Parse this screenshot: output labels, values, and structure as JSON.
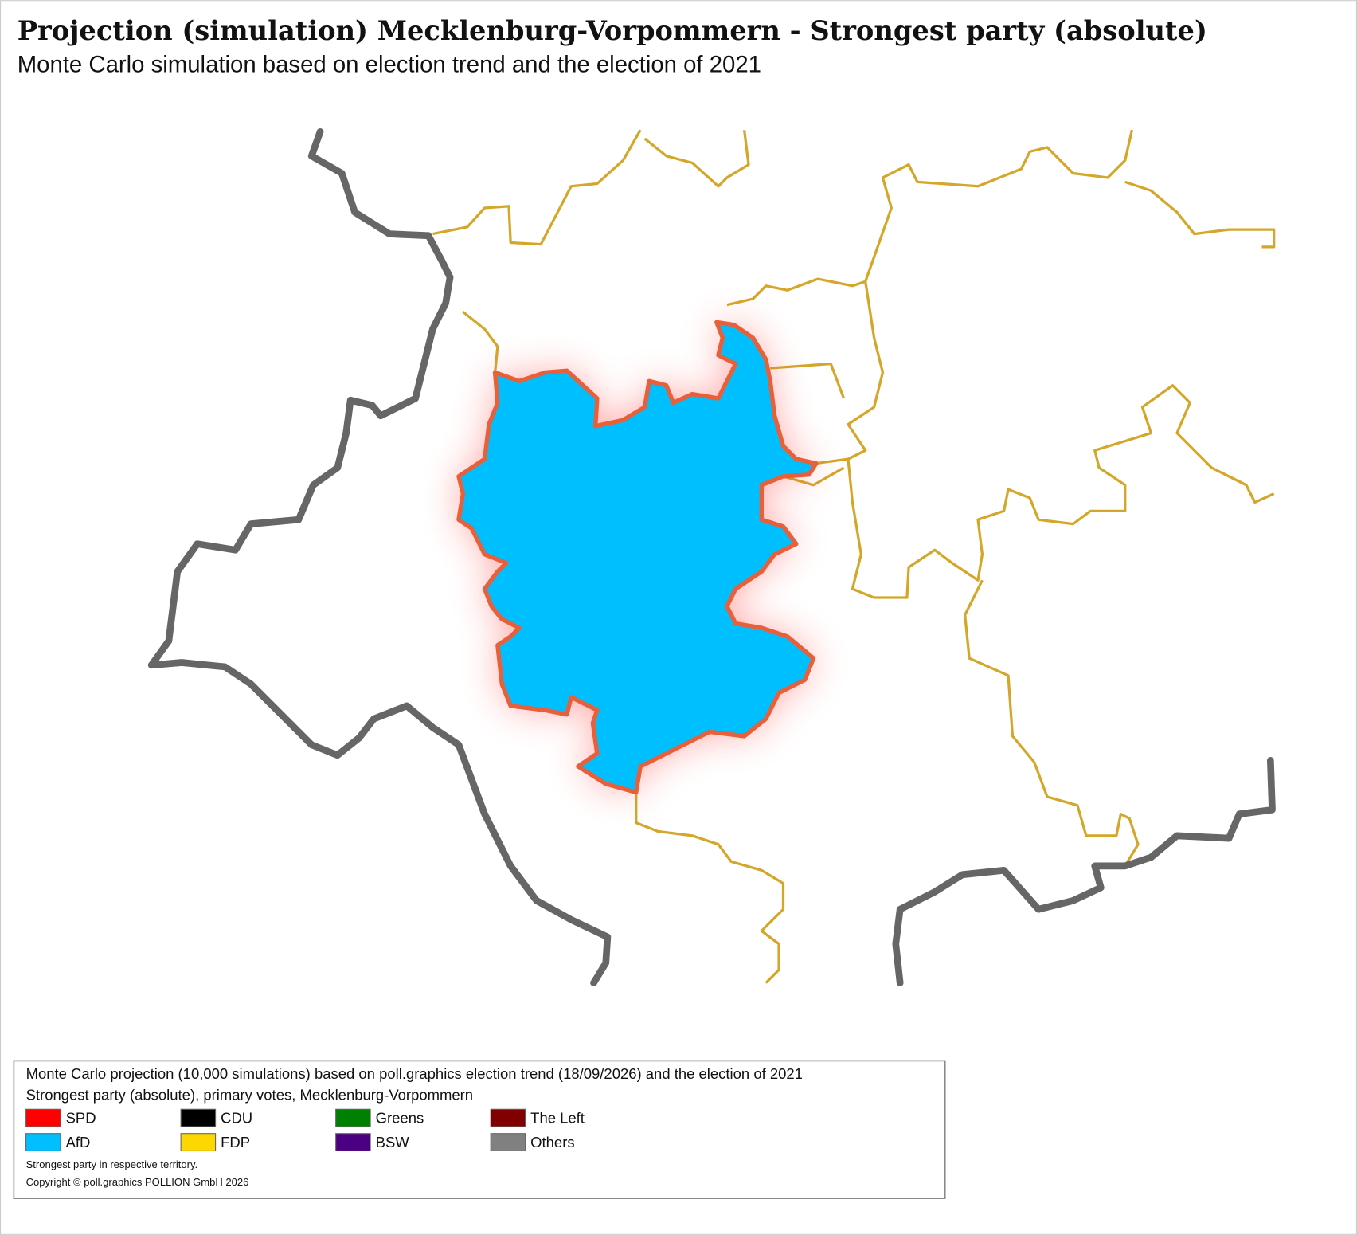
{
  "header": {
    "title": "Projection (simulation) Mecklenburg-Vorpommern - Strongest party (absolute)",
    "subtitle": "Monte Carlo simulation based on election trend and the election of 2021"
  },
  "legend": {
    "lines": [
      "Monte Carlo projection (10,000 simulations) based on poll.graphics election trend (18/09/2026) and the election of 2021",
      "Strongest party (absolute), primary votes, Mecklenburg-Vorpommern"
    ],
    "items": [
      {
        "label": "SPD",
        "color": "#ff0000"
      },
      {
        "label": "AfD",
        "color": "#00bfff"
      },
      {
        "label": "CDU",
        "color": "#000000"
      },
      {
        "label": "FDP",
        "color": "#ffd700"
      },
      {
        "label": "Greens",
        "color": "#008000"
      },
      {
        "label": "BSW",
        "color": "#4b0082"
      },
      {
        "label": "The Left",
        "color": "#800000"
      },
      {
        "label": "Others",
        "color": "#808080"
      }
    ],
    "notes": [
      "Strongest party in respective territory.",
      "Copyright © poll.graphics POLLION GmbH 2026"
    ]
  }
}
